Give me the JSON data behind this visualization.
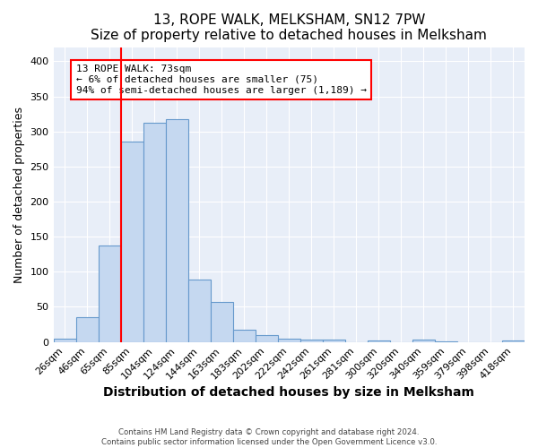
{
  "title": "13, ROPE WALK, MELKSHAM, SN12 7PW",
  "subtitle": "Size of property relative to detached houses in Melksham",
  "xlabel": "Distribution of detached houses by size in Melksham",
  "ylabel": "Number of detached properties",
  "categories": [
    "26sqm",
    "46sqm",
    "65sqm",
    "85sqm",
    "104sqm",
    "124sqm",
    "144sqm",
    "163sqm",
    "183sqm",
    "202sqm",
    "222sqm",
    "242sqm",
    "261sqm",
    "281sqm",
    "300sqm",
    "320sqm",
    "340sqm",
    "359sqm",
    "379sqm",
    "398sqm",
    "418sqm"
  ],
  "values": [
    5,
    35,
    138,
    285,
    313,
    318,
    89,
    57,
    18,
    10,
    4,
    3,
    3,
    0,
    2,
    0,
    3,
    1,
    0,
    0,
    2
  ],
  "bar_color": "#c5d8f0",
  "bar_edge_color": "#6699cc",
  "red_line_color": "red",
  "red_line_x": 2.5,
  "annotation_text": "13 ROPE WALK: 73sqm\n← 6% of detached houses are smaller (75)\n94% of semi-detached houses are larger (1,189) →",
  "annotation_box_color": "white",
  "annotation_box_edge_color": "red",
  "ylim": [
    0,
    420
  ],
  "yticks": [
    0,
    50,
    100,
    150,
    200,
    250,
    300,
    350,
    400
  ],
  "title_fontsize": 11,
  "xlabel_fontsize": 10,
  "ylabel_fontsize": 9,
  "tick_fontsize": 8,
  "footer_text": "Contains HM Land Registry data © Crown copyright and database right 2024.\nContains public sector information licensed under the Open Government Licence v3.0.",
  "fig_bg_color": "#ffffff",
  "plot_bg_color": "#e8eef8",
  "grid_color": "#ffffff"
}
